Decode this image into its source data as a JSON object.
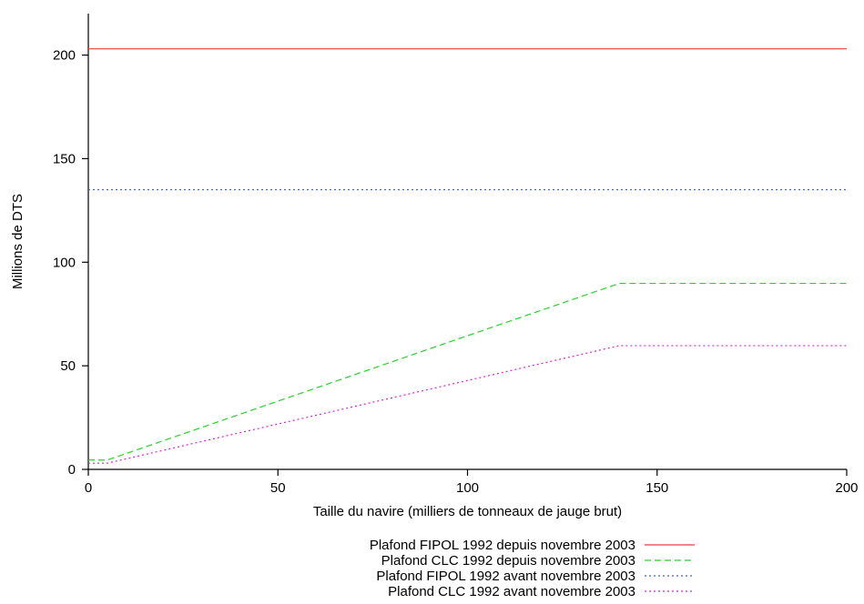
{
  "chart_data": {
    "type": "line",
    "title": "",
    "xlabel": "Taille du navire (milliers de tonneaux de jauge brut)",
    "ylabel": "Millions de DTS",
    "xlim": [
      0,
      200
    ],
    "ylim": [
      0,
      220
    ],
    "xticks": [
      0,
      50,
      100,
      150,
      200
    ],
    "yticks": [
      0,
      50,
      100,
      150,
      200
    ],
    "grid": false,
    "legend_position": "bottom",
    "series": [
      {
        "name": "Plafond FIPOL 1992 depuis novembre 2003",
        "color": "#e8413c",
        "dash": "solid",
        "x": [
          0,
          200
        ],
        "y": [
          203,
          203
        ]
      },
      {
        "name": "Plafond CLC 1992 depuis novembre 2003",
        "color": "#2ad12a",
        "dash": "dashed",
        "x": [
          0,
          5,
          140,
          200
        ],
        "y": [
          4.51,
          4.51,
          89.77,
          89.77
        ]
      },
      {
        "name": "Plafond FIPOL 1992 avant novembre 2003",
        "color": "#3c5fd8",
        "dash": "dotted",
        "x": [
          0,
          200
        ],
        "y": [
          135,
          135
        ]
      },
      {
        "name": "Plafond CLC 1992 avant novembre 2003",
        "color": "#d028d0",
        "dash": "dotted",
        "x": [
          0,
          5,
          140,
          200
        ],
        "y": [
          3,
          3,
          59.7,
          59.7
        ]
      }
    ]
  }
}
